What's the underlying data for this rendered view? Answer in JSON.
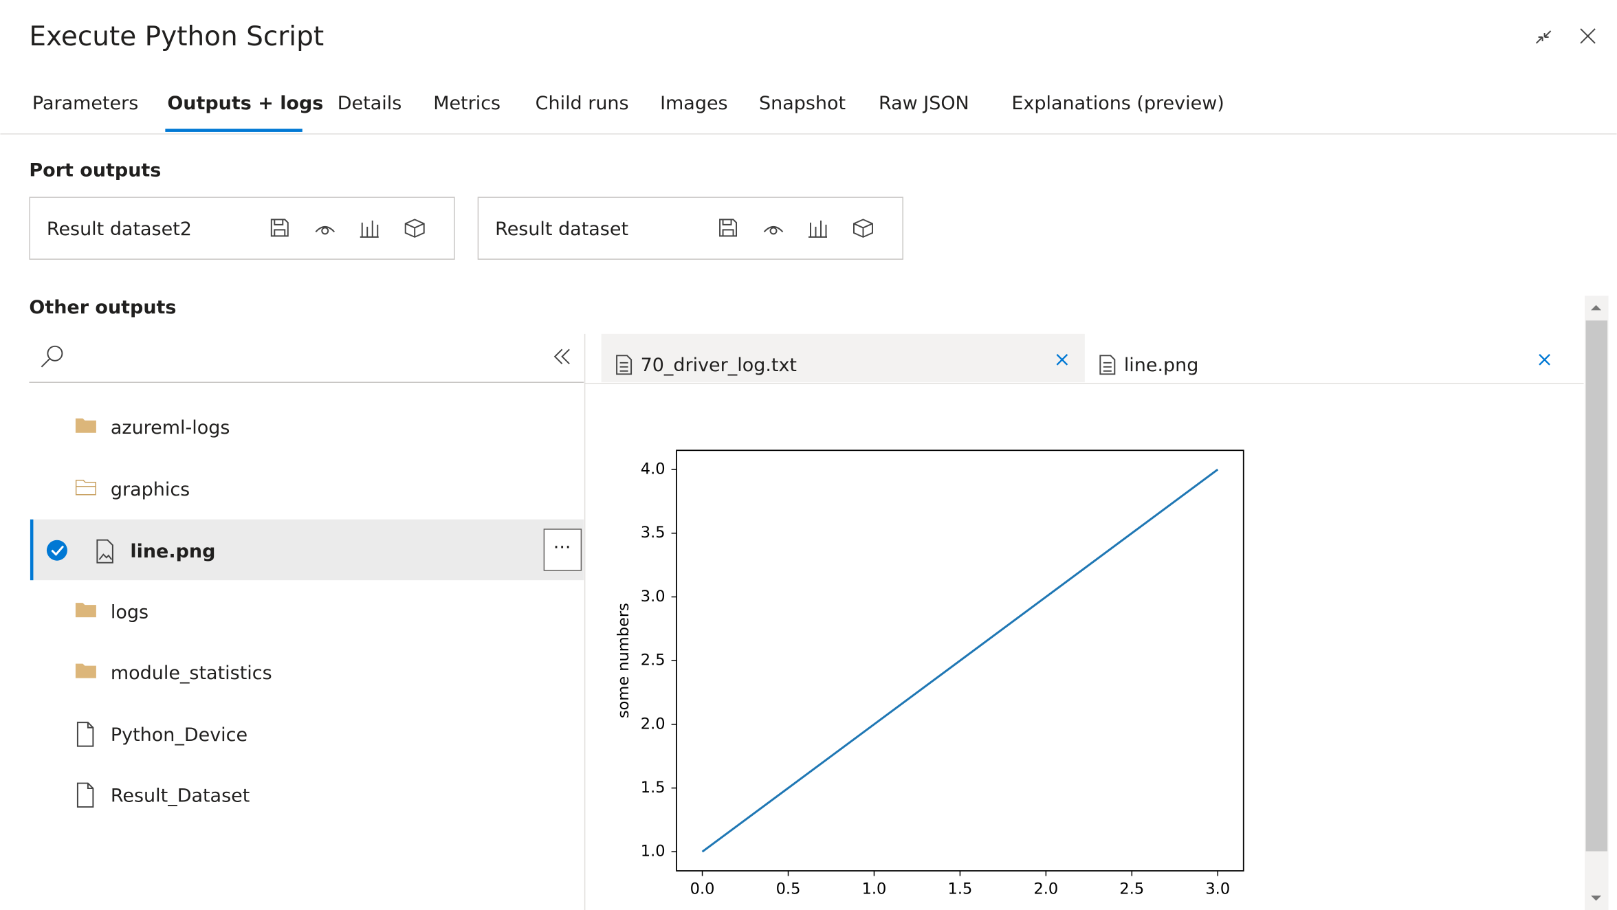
{
  "header": {
    "title": "Execute Python Script"
  },
  "tabs": [
    "Parameters",
    "Outputs + logs",
    "Details",
    "Metrics",
    "Child runs",
    "Images",
    "Snapshot",
    "Raw JSON",
    "Explanations (preview)"
  ],
  "port_outputs": {
    "title": "Port outputs",
    "items": [
      "Result dataset2",
      "Result dataset"
    ]
  },
  "other_outputs": {
    "title": "Other outputs",
    "items": [
      "azureml-logs",
      "graphics",
      "line.png",
      "logs",
      "module_statistics",
      "Python_Device",
      "Result_Dataset"
    ]
  },
  "file_tabs": [
    "70_driver_log.txt",
    "line.png"
  ],
  "chart_data": {
    "type": "line",
    "y_label": "some numbers",
    "x": [
      0,
      1,
      2,
      3
    ],
    "series": [
      {
        "color": "#1f77b4",
        "values": [
          1,
          2,
          3,
          4
        ]
      }
    ],
    "xlim": [
      -0.15,
      3.15
    ],
    "ylim": [
      0.85,
      4.15
    ],
    "xticks": [
      {
        "value": 0,
        "label": "0.0"
      },
      {
        "value": 0.5,
        "label": "0.5"
      },
      {
        "value": 1,
        "label": "1.0"
      },
      {
        "value": 1.5,
        "label": "1.5"
      },
      {
        "value": 2,
        "label": "2.0"
      },
      {
        "value": 2.5,
        "label": "2.5"
      },
      {
        "value": 3,
        "label": "3.0"
      }
    ],
    "yticks": [
      {
        "value": 1,
        "label": "1.0"
      },
      {
        "value": 1.5,
        "label": "1.5"
      },
      {
        "value": 2,
        "label": "2.0"
      },
      {
        "value": 2.5,
        "label": "2.5"
      },
      {
        "value": 3,
        "label": "3.0"
      },
      {
        "value": 3.5,
        "label": "3.5"
      },
      {
        "value": 4,
        "label": "4.0"
      }
    ],
    "grid": false
  }
}
